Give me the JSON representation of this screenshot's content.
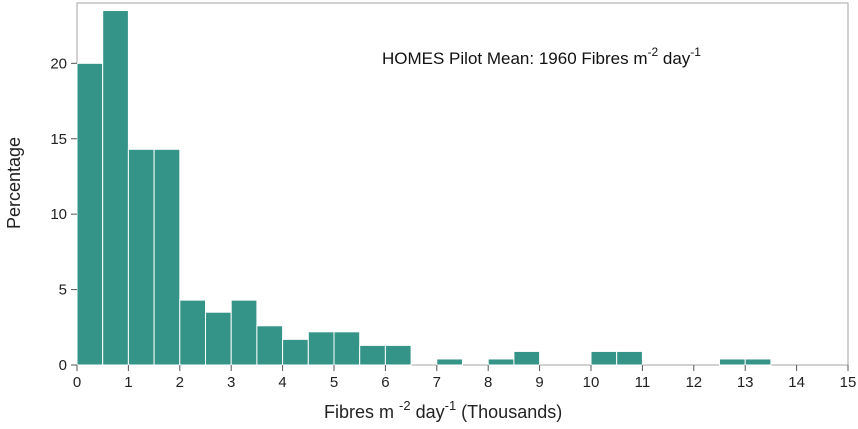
{
  "chart_data": {
    "type": "bar",
    "bin_width": 0.5,
    "bins": [
      {
        "x0": 0.0,
        "x1": 0.5,
        "value": 20.0
      },
      {
        "x0": 0.5,
        "x1": 1.0,
        "value": 23.5
      },
      {
        "x0": 1.0,
        "x1": 1.5,
        "value": 14.3
      },
      {
        "x0": 1.5,
        "x1": 2.0,
        "value": 14.3
      },
      {
        "x0": 2.0,
        "x1": 2.5,
        "value": 4.3
      },
      {
        "x0": 2.5,
        "x1": 3.0,
        "value": 3.5
      },
      {
        "x0": 3.0,
        "x1": 3.5,
        "value": 4.3
      },
      {
        "x0": 3.5,
        "x1": 4.0,
        "value": 2.6
      },
      {
        "x0": 4.0,
        "x1": 4.5,
        "value": 1.7
      },
      {
        "x0": 4.5,
        "x1": 5.0,
        "value": 2.2
      },
      {
        "x0": 5.0,
        "x1": 5.5,
        "value": 2.2
      },
      {
        "x0": 5.5,
        "x1": 6.0,
        "value": 1.3
      },
      {
        "x0": 6.0,
        "x1": 6.5,
        "value": 1.3
      },
      {
        "x0": 7.0,
        "x1": 7.5,
        "value": 0.4
      },
      {
        "x0": 8.0,
        "x1": 8.5,
        "value": 0.4
      },
      {
        "x0": 8.5,
        "x1": 9.0,
        "value": 0.9
      },
      {
        "x0": 10.0,
        "x1": 10.5,
        "value": 0.9
      },
      {
        "x0": 10.5,
        "x1": 11.0,
        "value": 0.9
      },
      {
        "x0": 12.5,
        "x1": 13.0,
        "value": 0.4
      },
      {
        "x0": 13.0,
        "x1": 13.5,
        "value": 0.4
      }
    ],
    "xlim": [
      0,
      15
    ],
    "ylim": [
      0,
      24
    ],
    "x_ticks": [
      "0",
      "1",
      "2",
      "3",
      "4",
      "5",
      "6",
      "7",
      "8",
      "9",
      "10",
      "11",
      "12",
      "13",
      "14",
      "15"
    ],
    "y_ticks": [
      "0",
      "5",
      "10",
      "15",
      "20"
    ],
    "xlabel": {
      "main": "Fibres m ",
      "sup1": "-2",
      "mid": " day",
      "sup2": "-1",
      "end": " (Thousands)"
    },
    "ylabel": "Percentage",
    "annotation": {
      "main": "HOMES Pilot Mean: 1960 Fibres m",
      "sup1": "-2",
      "mid": " day",
      "sup2": "-1"
    },
    "grid": false,
    "bar_color": "#339487",
    "bar_edge_color": "#ffffff",
    "frame_color": "#a6a6a6"
  }
}
